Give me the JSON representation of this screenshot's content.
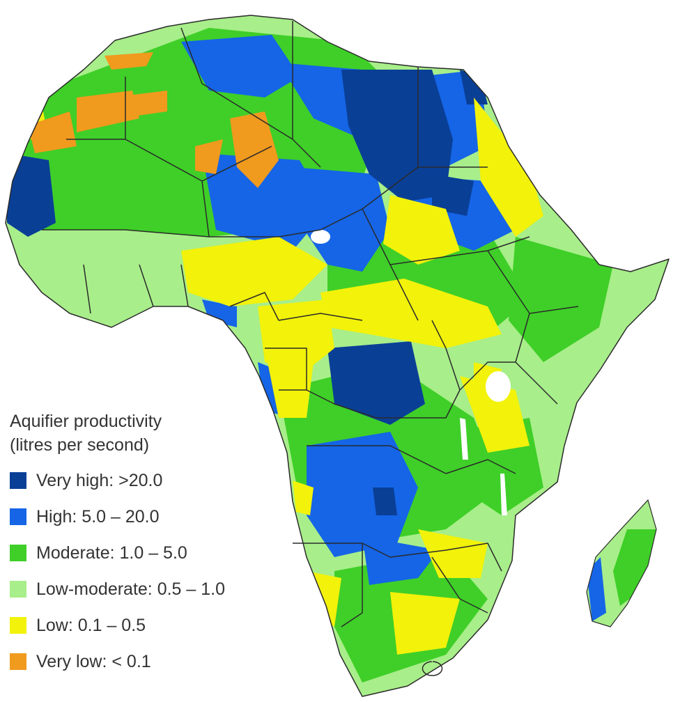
{
  "legend": {
    "title_line1": "Aquifier productivity",
    "title_line2": "(litres per second)",
    "items": [
      {
        "label": "Very high: >20.0",
        "color": "#0a3f96"
      },
      {
        "label": "High: 5.0 – 20.0",
        "color": "#1565e6"
      },
      {
        "label": "Moderate: 1.0 – 5.0",
        "color": "#3fcf28"
      },
      {
        "label": "Low-moderate: 0.5 – 1.0",
        "color": "#a8ee8a"
      },
      {
        "label": "Low: 0.1 – 0.5",
        "color": "#f2f20a"
      },
      {
        "label": "Very low: < 0.1",
        "color": "#f09a1e"
      }
    ]
  },
  "colors": {
    "very_high": "#0a3f96",
    "high": "#1565e6",
    "moderate": "#3fcf28",
    "low_moderate": "#a8ee8a",
    "low": "#f2f20a",
    "very_low": "#f09a1e",
    "border": "#2a2a2a",
    "water": "#ffffff"
  }
}
